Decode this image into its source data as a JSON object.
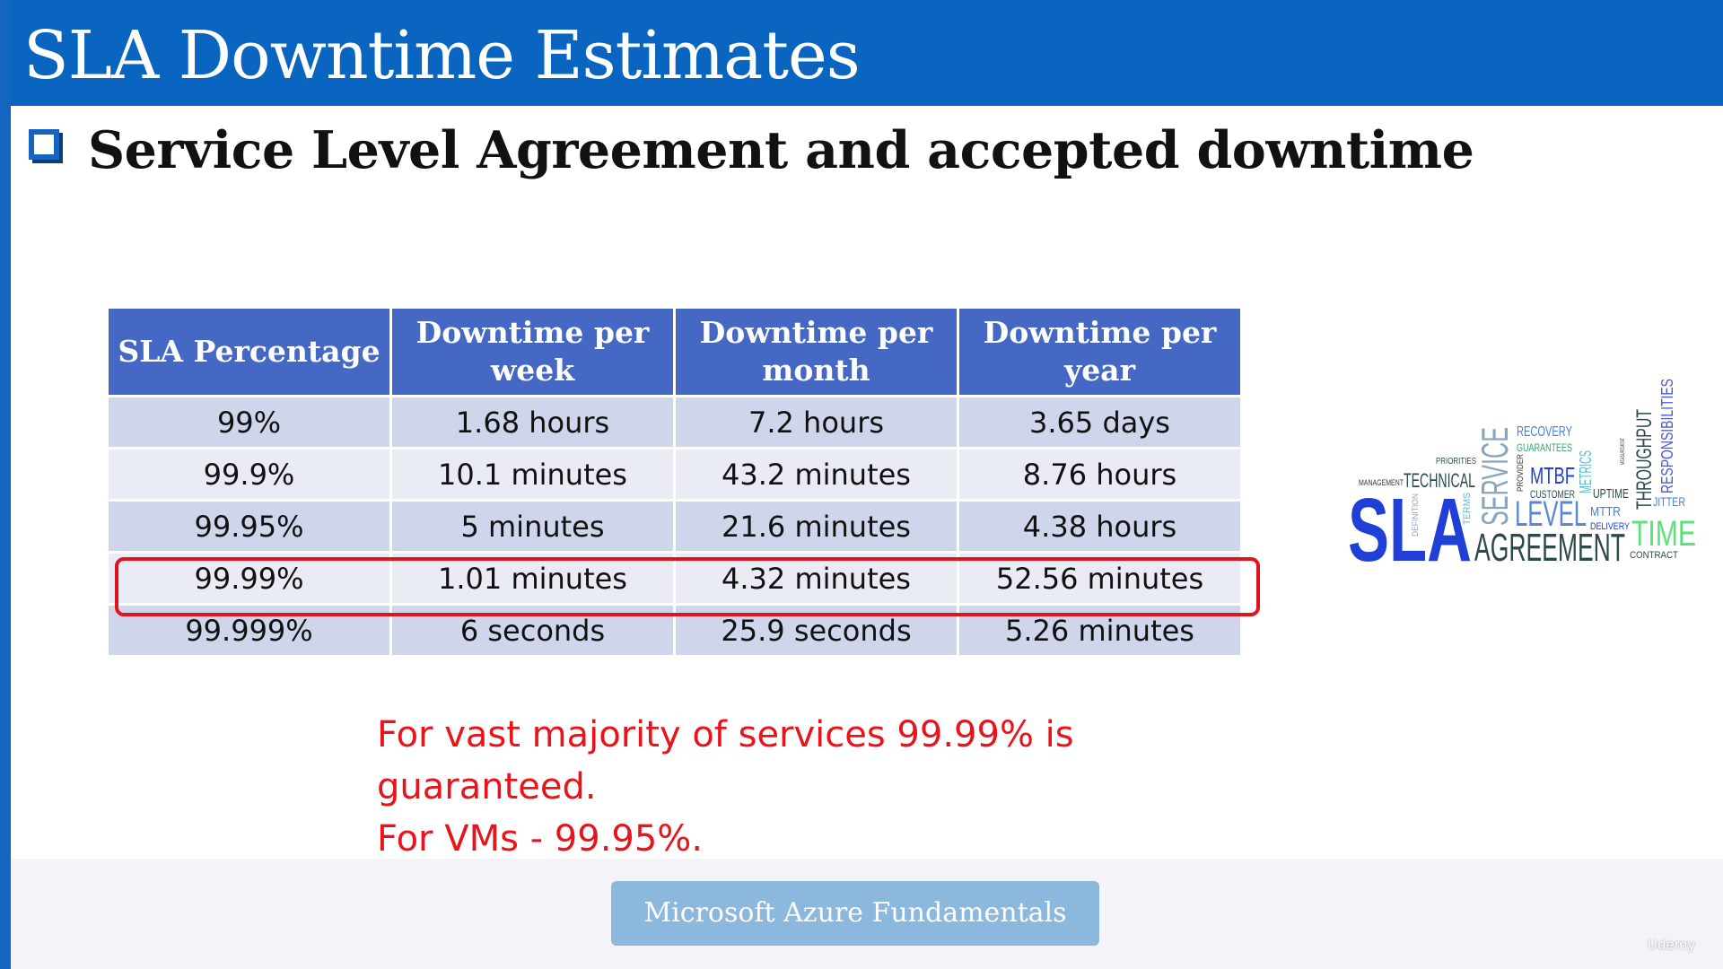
{
  "header": {
    "title": "SLA Downtime Estimates"
  },
  "subtitle": {
    "text": "Service Level Agreement and accepted downtime"
  },
  "table": {
    "headers": [
      "SLA Percentage",
      "Downtime per week",
      "Downtime per month",
      "Downtime per year"
    ],
    "rows": [
      [
        "99%",
        "1.68 hours",
        "7.2 hours",
        "3.65 days"
      ],
      [
        "99.9%",
        "10.1 minutes",
        "43.2 minutes",
        "8.76 hours"
      ],
      [
        "99.95%",
        "5 minutes",
        "21.6 minutes",
        "4.38 hours"
      ],
      [
        "99.99%",
        "1.01 minutes",
        "4.32 minutes",
        "52.56 minutes"
      ],
      [
        "99.999%",
        "6 seconds",
        "25.9 seconds",
        "5.26 minutes"
      ]
    ],
    "highlighted_row": 3
  },
  "note": {
    "lines": [
      "For vast majority of services 99.99% is",
      "guaranteed.",
      "For VMs -  99.95%."
    ]
  },
  "wordcloud": {
    "words": [
      "SLA",
      "AGREEMENT",
      "LEVEL",
      "SERVICE",
      "TECHNICAL",
      "MANAGEMENT",
      "PRIORITIES",
      "RECOVERY",
      "GUARANTEES",
      "MTBF",
      "METRICS",
      "CUSTOMER",
      "UPTIME",
      "MTTR",
      "DELIVERY",
      "THROUGHPUT",
      "RESPONSIBILITIES",
      "JITTER",
      "TIME",
      "CONTRACT",
      "TERMS",
      "DEFINITION",
      "PROVIDER",
      "MEASUREMENT"
    ]
  },
  "footer": {
    "button_label": "Microsoft Azure Fundamentals",
    "brand": "Udemy"
  },
  "colors": {
    "header": "#0a65c0",
    "table_header": "#4468c4",
    "highlight": "#e0141c",
    "note": "#e8141c"
  }
}
